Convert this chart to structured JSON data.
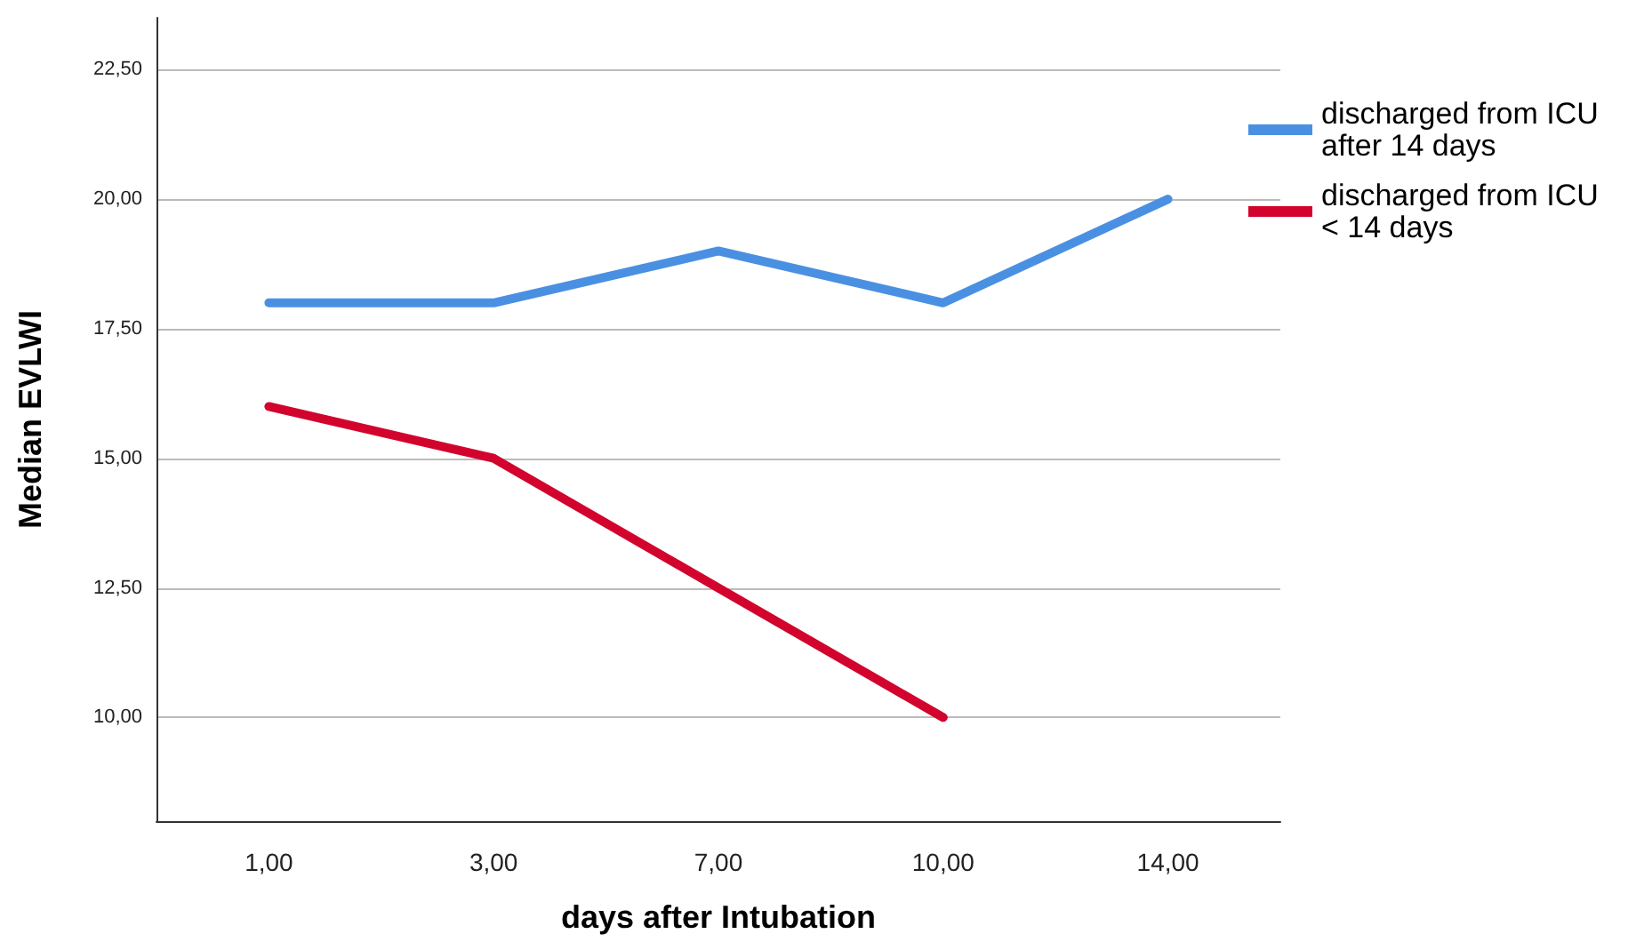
{
  "chart_data": {
    "type": "line",
    "xlabel": "days after Intubation",
    "ylabel": "Median EVLWI",
    "categories": [
      "1,00",
      "3,00",
      "7,00",
      "10,00",
      "14,00"
    ],
    "series": [
      {
        "name": "discharged from ICU after 14 days",
        "color": "#4a90e2",
        "values": [
          18,
          18,
          19,
          18,
          20
        ]
      },
      {
        "name": "discharged from ICU < 14 days",
        "color": "#d2042d",
        "values": [
          16,
          15,
          12.5,
          10,
          null
        ]
      }
    ],
    "ylim": [
      8,
      23.5
    ],
    "yticks": [
      {
        "value": 10,
        "label": "10,00"
      },
      {
        "value": 12.5,
        "label": "12,50"
      },
      {
        "value": 15,
        "label": "15,00"
      },
      {
        "value": 17.5,
        "label": "17,50"
      },
      {
        "value": 20,
        "label": "20,00"
      },
      {
        "value": 22.5,
        "label": "22,50"
      }
    ],
    "grid": "y",
    "legend": "right",
    "marker": "none",
    "line_style": "solid"
  }
}
